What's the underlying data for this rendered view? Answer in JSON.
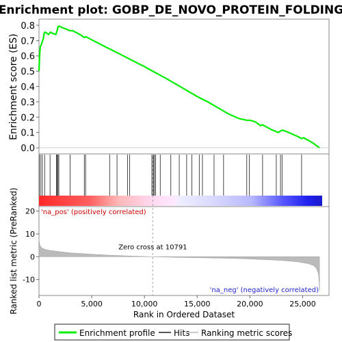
{
  "chart_data": {
    "type": "line",
    "title": "Enrichment plot: GOBP_DE_NOVO_PROTEIN_FOLDING",
    "top_panel": {
      "ylabel": "Enrichment score (ES)",
      "ylim": [
        -0.04,
        0.84
      ],
      "yticks": [
        "0.0",
        "0.1",
        "0.2",
        "0.3",
        "0.4",
        "0.5",
        "0.6",
        "0.7",
        "0.8"
      ],
      "ytick_values": [
        0,
        0.1,
        0.2,
        0.3,
        0.4,
        0.5,
        0.6,
        0.7,
        0.8
      ],
      "series": [
        {
          "name": "Enrichment profile",
          "color": "#00ee00",
          "x": [
            0,
            60,
            120,
            200,
            300,
            400,
            500,
            560,
            700,
            900,
            1100,
            1200,
            1400,
            1600,
            1700,
            1800,
            1900,
            2200,
            2600,
            2900,
            3200,
            3600,
            4000,
            4300,
            4450,
            5000,
            6000,
            7000,
            8000,
            9000,
            10000,
            10791,
            12000,
            13000,
            14000,
            15000,
            16000,
            17000,
            18000,
            19000,
            19700,
            20000,
            20500,
            21000,
            21200,
            21600,
            22000,
            22500,
            22700,
            22900,
            23100,
            23500,
            24000,
            24500,
            24900,
            25100,
            25500,
            26000,
            26300,
            26600
          ],
          "y": [
            0.5,
            0.6,
            0.66,
            0.67,
            0.69,
            0.71,
            0.75,
            0.755,
            0.75,
            0.74,
            0.755,
            0.75,
            0.745,
            0.74,
            0.76,
            0.79,
            0.795,
            0.785,
            0.775,
            0.765,
            0.765,
            0.75,
            0.735,
            0.72,
            0.725,
            0.705,
            0.67,
            0.635,
            0.6,
            0.565,
            0.53,
            0.5,
            0.455,
            0.415,
            0.375,
            0.335,
            0.3,
            0.26,
            0.22,
            0.19,
            0.18,
            0.18,
            0.17,
            0.145,
            0.15,
            0.135,
            0.12,
            0.105,
            0.1,
            0.11,
            0.115,
            0.105,
            0.09,
            0.075,
            0.06,
            0.065,
            0.05,
            0.03,
            0.015,
            0.0
          ]
        }
      ]
    },
    "hits": [
      40,
      180,
      320,
      540,
      1050,
      1650,
      1720,
      1800,
      1880,
      2950,
      4300,
      4420,
      6700,
      7400,
      8400,
      8600,
      10700,
      10800,
      10850,
      10950,
      11050,
      11500,
      12500,
      13300,
      14000,
      14500,
      15200,
      15500,
      16600,
      17500,
      19700,
      19950,
      21200,
      22500,
      22900,
      23050,
      24900
    ],
    "bottom_panel": {
      "ylabel": "Ranked list metric (PreRanked)",
      "xlabel": "Rank in Ordered Dataset",
      "ylim": [
        -17,
        22
      ],
      "yticks": [
        "20",
        "10",
        "0",
        "-10"
      ],
      "ytick_values": [
        20,
        10,
        0,
        -10
      ],
      "xlim": [
        0,
        27500
      ],
      "xticks": [
        "0",
        "5,000",
        "10,000",
        "15,000",
        "20,000",
        "25,000"
      ],
      "xtick_values": [
        0,
        5000,
        10000,
        15000,
        20000,
        25000
      ],
      "metric_curve": {
        "x": [
          0,
          20,
          60,
          150,
          300,
          600,
          1000,
          2000,
          3000,
          5000,
          7000,
          9000,
          10791,
          13000,
          16000,
          19000,
          21000,
          23000,
          24500,
          25500,
          26000,
          26300,
          26500,
          26560,
          26600
        ],
        "y": [
          9.5,
          7,
          5.5,
          4.5,
          3.8,
          3.2,
          2.8,
          2.2,
          1.7,
          1.1,
          0.6,
          0.25,
          0,
          -0.25,
          -0.5,
          -0.8,
          -1.2,
          -1.6,
          -2.2,
          -3.0,
          -3.8,
          -5.0,
          -7.5,
          -11,
          -15
        ]
      },
      "zero_cross_label": "Zero cross at 10791",
      "zero_cross_x": 10791,
      "pos_label": "'na_pos' (positively correlated)",
      "neg_label": "'na_neg' (negatively correlated)"
    },
    "legend": [
      {
        "label": "Enrichment profile",
        "color": "#00ee00"
      },
      {
        "label": "Hits",
        "color": "#555555"
      },
      {
        "label": "Ranking metric scores",
        "color": "#cccccc"
      }
    ],
    "colors": {
      "pos_text": "#cc0000",
      "neg_text": "#2222cc",
      "metric_fill": "#bbbbbb"
    }
  }
}
